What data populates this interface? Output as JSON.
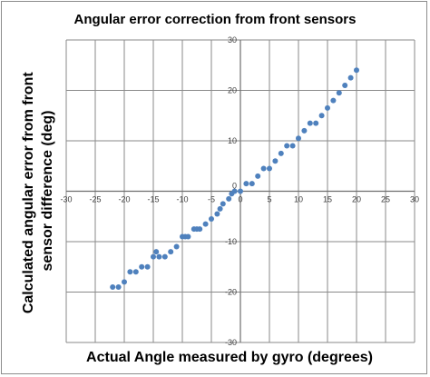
{
  "chart_data": {
    "type": "scatter",
    "title": "Angular error correction from front sensors",
    "xlabel": "Actual Angle measured by gyro (degrees)",
    "ylabel": "Calculated angular error from front sensor difference (deg)",
    "ylabel_lines": [
      "Calculated angular error from front",
      "sensor difference (deg)"
    ],
    "xlim": [
      -30,
      30
    ],
    "ylim": [
      -30,
      30
    ],
    "x_ticks": [
      -30,
      -25,
      -20,
      -15,
      -10,
      -5,
      0,
      5,
      10,
      15,
      20,
      25,
      30
    ],
    "y_ticks": [
      -30,
      -20,
      -10,
      0,
      10,
      20,
      30
    ],
    "grid": true,
    "legend": "none",
    "marker_color": "#4f81bd",
    "series": [
      {
        "x": [
          -22,
          -21,
          -20,
          -19,
          -18,
          -17,
          -16,
          -15,
          -14.5,
          -14,
          -13,
          -12,
          -11,
          -10,
          -9.5,
          -9,
          -8,
          -7.5,
          -7,
          -6,
          -5,
          -4,
          -3.5,
          -3,
          -2,
          -1.5,
          -1,
          0,
          1,
          2,
          3,
          4,
          5,
          6,
          7,
          8,
          9,
          10,
          11,
          12,
          13,
          14,
          15,
          16,
          17,
          18,
          19,
          20
        ],
        "y": [
          -19,
          -19,
          -18,
          -16,
          -16,
          -15,
          -15,
          -13,
          -12,
          -13,
          -13,
          -12,
          -11,
          -9,
          -9,
          -9,
          -7.5,
          -7.5,
          -7.5,
          -6.5,
          -5.5,
          -4.5,
          -3.5,
          -2.5,
          -1.5,
          -0.5,
          0,
          0,
          1.5,
          1.5,
          3,
          4.5,
          4.5,
          6,
          7.5,
          9,
          9,
          10.5,
          12,
          13.5,
          13.5,
          15,
          16.5,
          18,
          19.5,
          21,
          22.5,
          24
        ]
      }
    ]
  }
}
